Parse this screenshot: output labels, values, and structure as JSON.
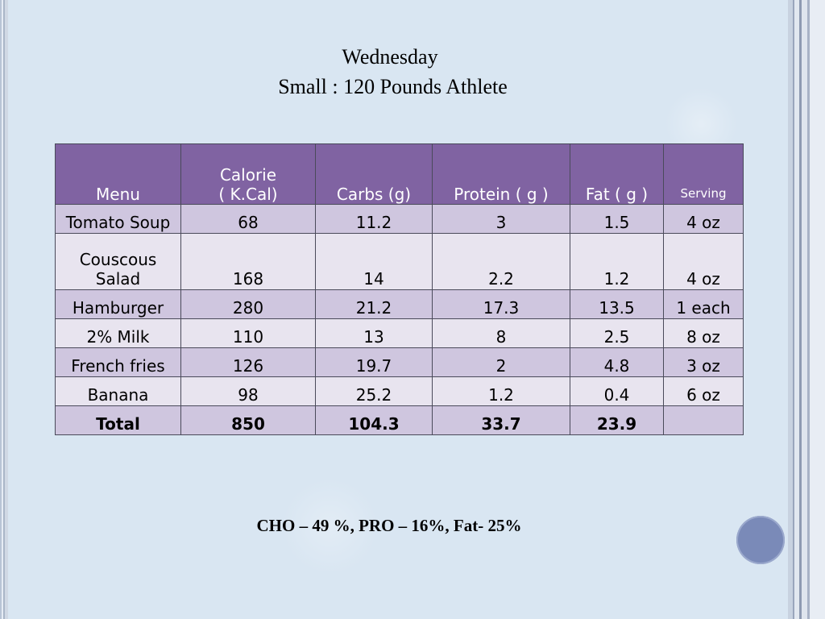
{
  "title": "Wednesday",
  "subtitle": "Small : 120 Pounds Athlete",
  "table": {
    "headers": [
      {
        "line1": "",
        "line2": "Menu"
      },
      {
        "line1": "Calorie",
        "line2": "( K.Cal)"
      },
      {
        "line1": "",
        "line2": "Carbs (g)"
      },
      {
        "line1": "",
        "line2": "Protein ( g )"
      },
      {
        "line1": "",
        "line2": "Fat ( g )"
      },
      {
        "line1": "",
        "line2": "Serving"
      }
    ],
    "rows": [
      {
        "menu": "Tomato Soup",
        "calorie": "68",
        "carbs": "11.2",
        "protein": "3",
        "fat": "1.5",
        "serving": "4 oz"
      },
      {
        "menu_line1": "Couscous",
        "menu_line2": "Salad",
        "calorie": "168",
        "carbs": "14",
        "protein": "2.2",
        "fat": "1.2",
        "serving": "4 oz"
      },
      {
        "menu": "Hamburger",
        "calorie": "280",
        "carbs": "21.2",
        "protein": "17.3",
        "fat": "13.5",
        "serving": "1 each"
      },
      {
        "menu": "2% Milk",
        "calorie": "110",
        "carbs": "13",
        "protein": "8",
        "fat": "2.5",
        "serving": "8 oz"
      },
      {
        "menu": "French fries",
        "calorie": "126",
        "carbs": "19.7",
        "protein": "2",
        "fat": "4.8",
        "serving": "3 oz"
      },
      {
        "menu": "Banana",
        "calorie": "98",
        "carbs": "25.2",
        "protein": "1.2",
        "fat": "0.4",
        "serving": "6 oz"
      }
    ],
    "total": {
      "menu": "Total",
      "calorie": "850",
      "carbs": "104.3",
      "protein": "33.7",
      "fat": "23.9",
      "serving": ""
    }
  },
  "footer": "CHO – 49 %, PRO – 16%, Fat- 25%",
  "colors": {
    "header_bg": "#8063a2",
    "row_dark": "#cfc6df",
    "row_light": "#e8e4ef",
    "background": "#d9e6f2",
    "accent_circle": "#7a8ab8"
  }
}
